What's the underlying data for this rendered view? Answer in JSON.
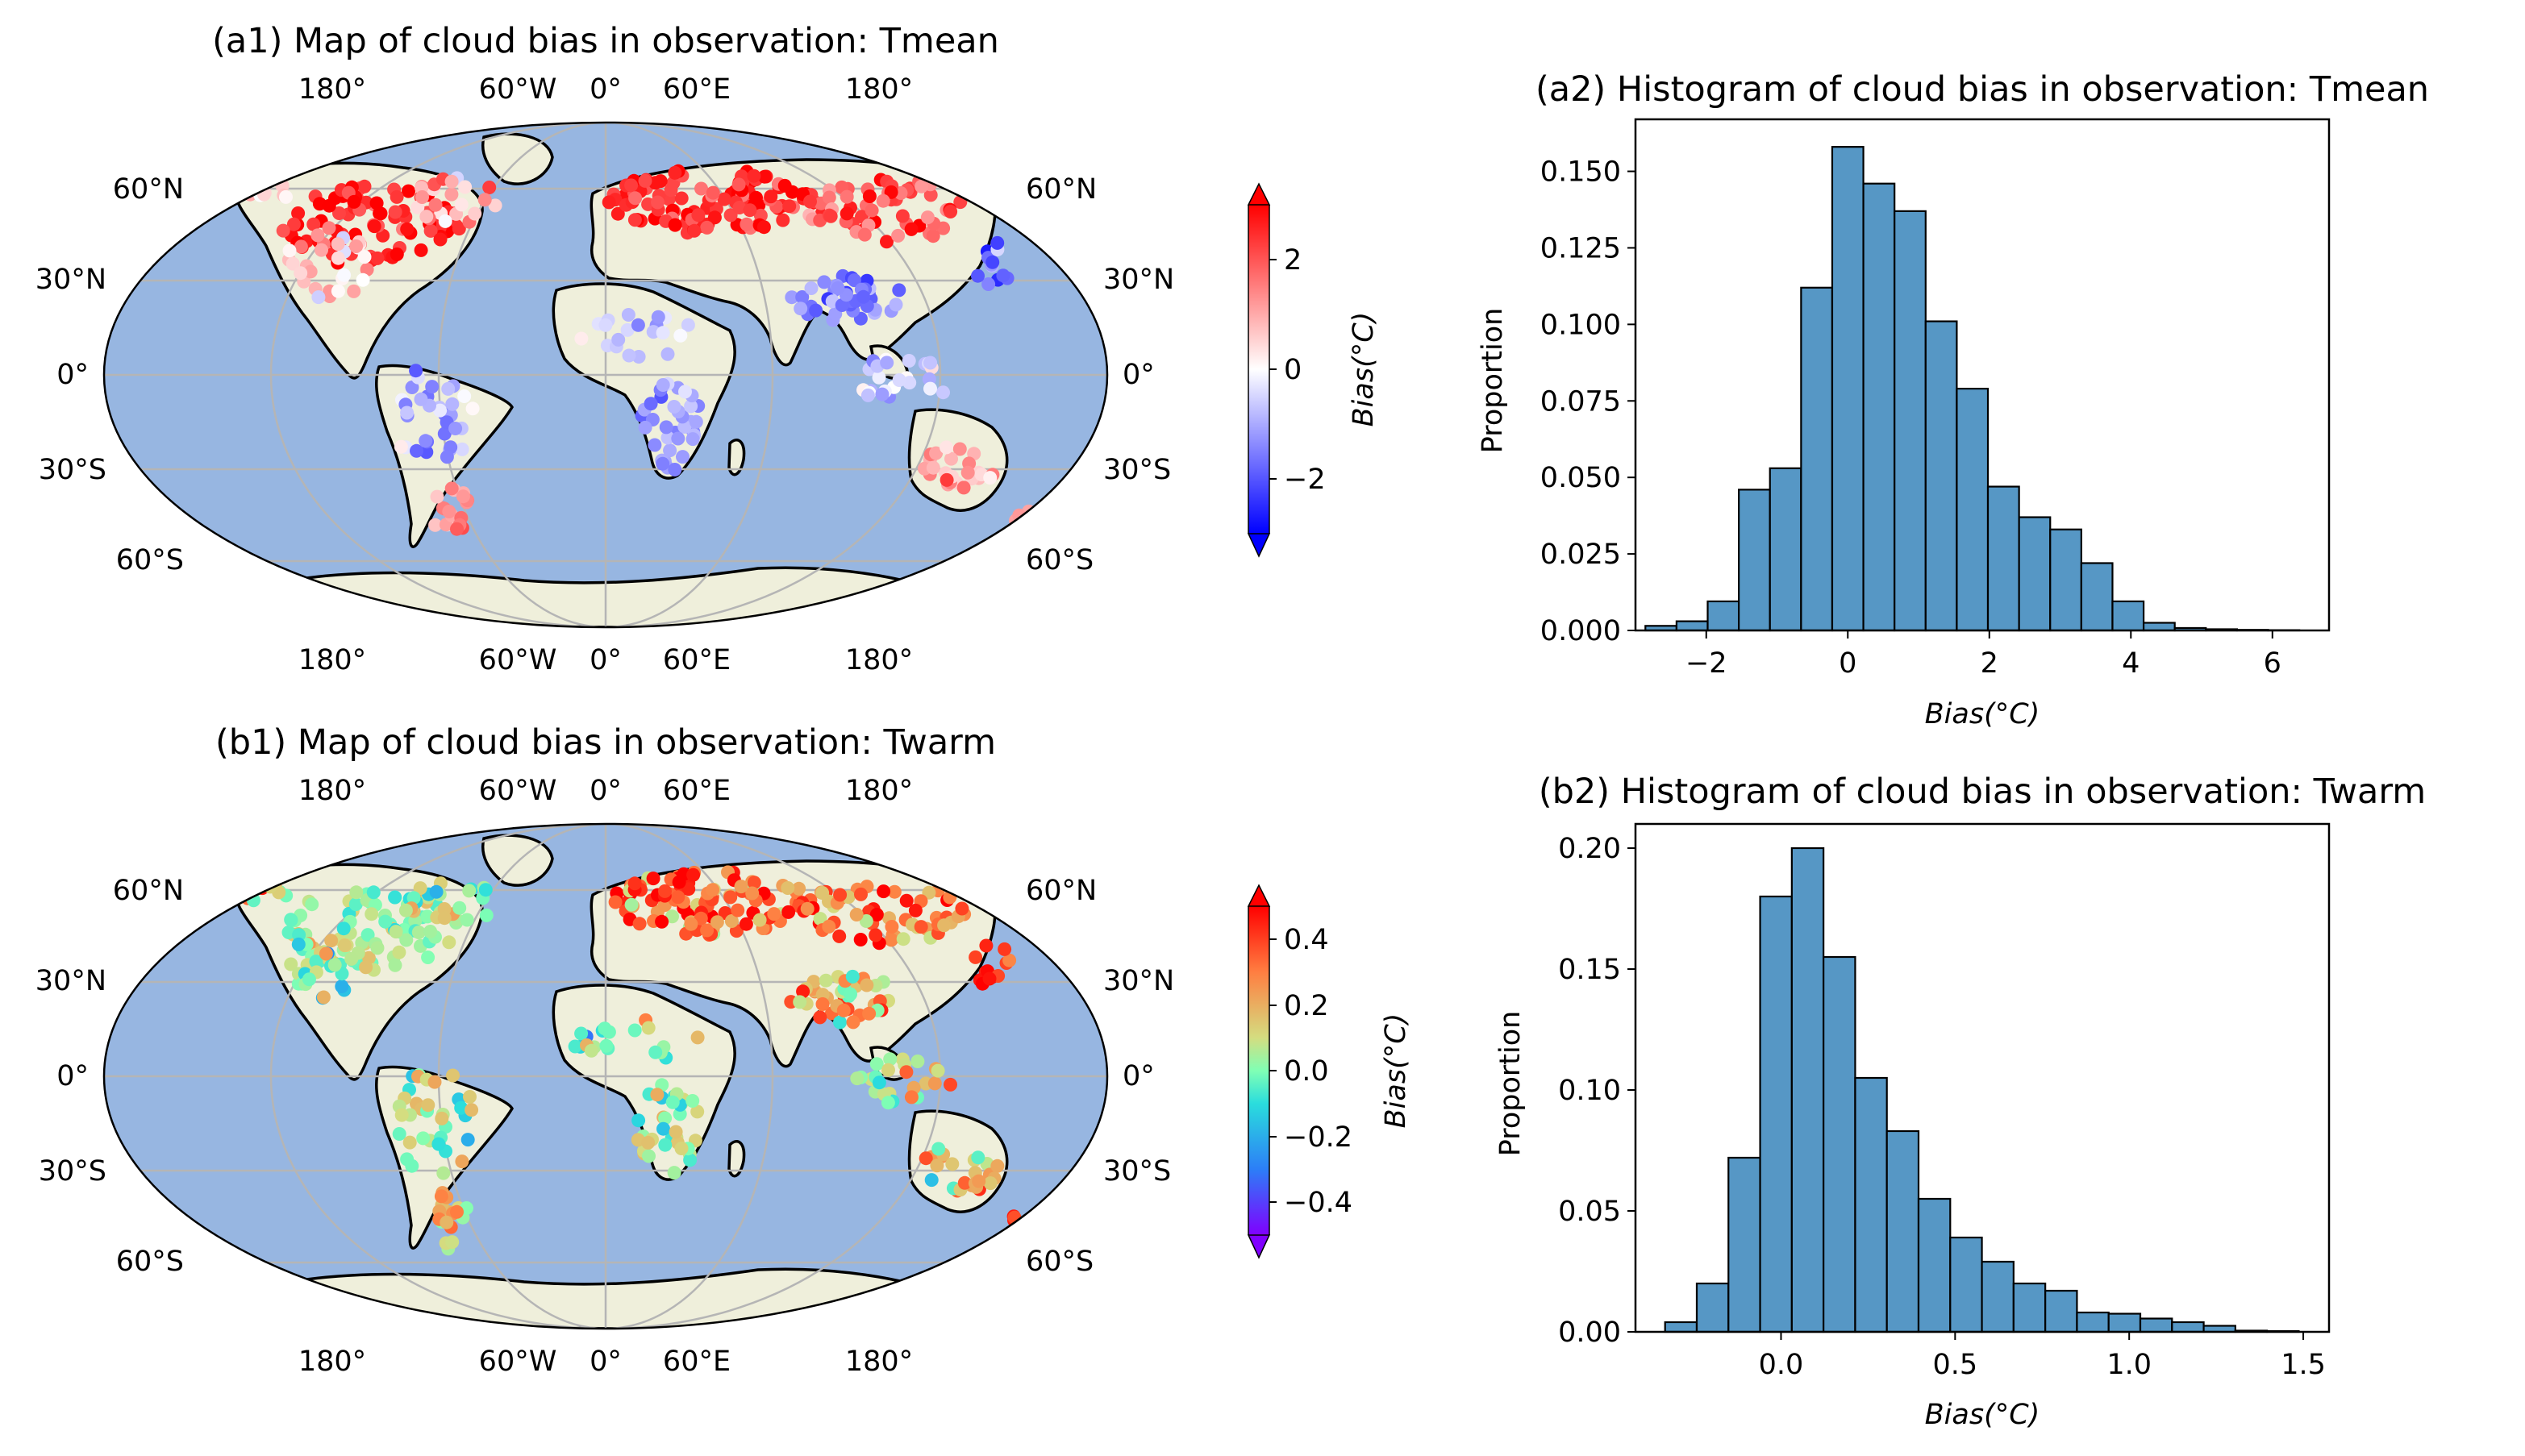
{
  "chart_data": [
    {
      "panel": "a1",
      "type": "scatter",
      "title": "(a1) Map of cloud bias in observation: Tmean",
      "lon_labels": [
        "180°",
        "60°W",
        "0°",
        "60°E",
        "180°"
      ],
      "lat_labels": [
        "60°N",
        "30°N",
        "0°",
        "30°S",
        "60°S"
      ],
      "colorbar": {
        "label": "Bias(°C)",
        "ticks": [
          2,
          0,
          -2
        ],
        "tick_labels": [
          "2",
          "0",
          "−2"
        ],
        "range": [
          -3,
          3
        ],
        "colormap": "bwr"
      }
    },
    {
      "panel": "a2",
      "type": "bar",
      "title": "(a2) Histogram of cloud bias in observation: Tmean",
      "xlabel": "Bias(°C)",
      "ylabel": "Proportion",
      "xlim": [
        -3.0,
        6.8
      ],
      "ylim": [
        0,
        0.167
      ],
      "xticks": [
        -2,
        0,
        2,
        4,
        6
      ],
      "xtick_labels": [
        "−2",
        "0",
        "2",
        "4",
        "6"
      ],
      "yticks": [
        0.0,
        0.025,
        0.05,
        0.075,
        0.1,
        0.125,
        0.15
      ],
      "ytick_labels": [
        "0.000",
        "0.025",
        "0.050",
        "0.075",
        "0.100",
        "0.125",
        "0.150"
      ],
      "bin_edges": [
        -2.86,
        -2.42,
        -1.98,
        -1.54,
        -1.1,
        -0.66,
        -0.22,
        0.22,
        0.66,
        1.1,
        1.54,
        1.98,
        2.42,
        2.86,
        3.3,
        3.74,
        4.18,
        4.62,
        5.06,
        5.5,
        5.94,
        6.38
      ],
      "values": [
        0.0015,
        0.003,
        0.0095,
        0.046,
        0.053,
        0.112,
        0.158,
        0.146,
        0.137,
        0.101,
        0.079,
        0.047,
        0.037,
        0.033,
        0.022,
        0.0095,
        0.0025,
        0.0008,
        0.0004,
        0.0002,
        0.0001
      ]
    },
    {
      "panel": "b1",
      "type": "scatter",
      "title": "(b1) Map of cloud bias in observation: Twarm",
      "lon_labels": [
        "180°",
        "60°W",
        "0°",
        "60°E",
        "180°"
      ],
      "lat_labels": [
        "60°N",
        "30°N",
        "0°",
        "30°S",
        "60°S"
      ],
      "colorbar": {
        "label": "Bias(°C)",
        "ticks": [
          0.4,
          0.2,
          0.0,
          -0.2,
          -0.4
        ],
        "tick_labels": [
          "0.4",
          "0.2",
          "0.0",
          "−0.2",
          "−0.4"
        ],
        "range": [
          -0.5,
          0.5
        ],
        "colormap": "rainbow"
      }
    },
    {
      "panel": "b2",
      "type": "bar",
      "title": "(b2) Histogram of cloud bias in observation: Twarm",
      "xlabel": "Bias(°C)",
      "ylabel": "Proportion",
      "xlim": [
        -0.418,
        1.574
      ],
      "ylim": [
        0,
        0.21
      ],
      "xticks": [
        0.0,
        0.5,
        1.0,
        1.5
      ],
      "xtick_labels": [
        "0.0",
        "0.5",
        "1.0",
        "1.5"
      ],
      "yticks": [
        0.0,
        0.05,
        0.1,
        0.15,
        0.2
      ],
      "ytick_labels": [
        "0.00",
        "0.05",
        "0.10",
        "0.15",
        "0.20"
      ],
      "bin_edges": [
        -0.333,
        -0.242,
        -0.151,
        -0.06,
        0.031,
        0.122,
        0.213,
        0.304,
        0.395,
        0.486,
        0.577,
        0.668,
        0.759,
        0.85,
        0.941,
        1.032,
        1.123,
        1.214,
        1.305,
        1.396,
        1.487
      ],
      "values": [
        0.004,
        0.02,
        0.072,
        0.18,
        0.2,
        0.155,
        0.105,
        0.083,
        0.055,
        0.039,
        0.029,
        0.02,
        0.017,
        0.008,
        0.0075,
        0.0055,
        0.004,
        0.0025,
        0.0005,
        0.0003
      ]
    }
  ]
}
